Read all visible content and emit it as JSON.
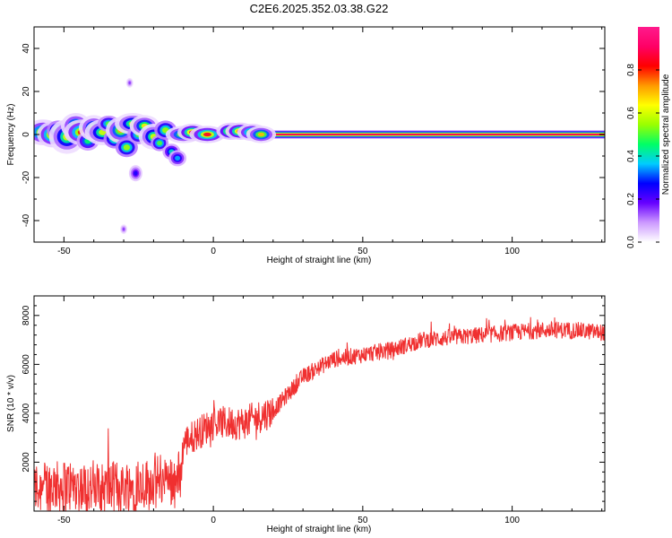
{
  "title": "C2E6.2025.352.03.38.G22",
  "chart_data": [
    {
      "type": "heatmap",
      "title": "C2E6.2025.352.03.38.G22",
      "xlabel": "Height of straight line (km)",
      "ylabel": "Frequency (Hz)",
      "xlim": [
        -60,
        131
      ],
      "ylim": [
        -50,
        50
      ],
      "xticks": [
        -50,
        0,
        50,
        100
      ],
      "yticks": [
        -40,
        -20,
        0,
        20,
        40
      ],
      "colorbar": {
        "label": "Normalized spectral amplitude",
        "range": [
          0,
          1
        ],
        "ticks": [
          "0.0",
          "0.2",
          "0.4",
          "0.6",
          "0.8"
        ],
        "colors": [
          "#ffffff",
          "#cc99ff",
          "#6600ff",
          "#0000ff",
          "#00ccff",
          "#00ff66",
          "#99ff00",
          "#ffff00",
          "#ff9900",
          "#ff0000",
          "#ff0066",
          "#ff1a8c"
        ]
      },
      "blobs": [
        {
          "x": -57,
          "y": 1,
          "w": 3,
          "h": 3,
          "a": 0.75
        },
        {
          "x": -54,
          "y": 0,
          "w": 2.5,
          "h": 3,
          "a": 0.8
        },
        {
          "x": -52,
          "y": 2,
          "w": 2.5,
          "h": 3,
          "a": 0.55
        },
        {
          "x": -49,
          "y": -1,
          "w": 3,
          "h": 4,
          "a": 0.6
        },
        {
          "x": -46,
          "y": 4,
          "w": 2.5,
          "h": 3,
          "a": 0.7
        },
        {
          "x": -44,
          "y": 1,
          "w": 3,
          "h": 3,
          "a": 0.8
        },
        {
          "x": -42,
          "y": -3,
          "w": 2.5,
          "h": 3,
          "a": 0.45
        },
        {
          "x": -40,
          "y": 3,
          "w": 2.5,
          "h": 3,
          "a": 0.65
        },
        {
          "x": -37,
          "y": 1,
          "w": 3,
          "h": 3,
          "a": 0.6
        },
        {
          "x": -35,
          "y": 5,
          "w": 2.5,
          "h": 2.5,
          "a": 0.5
        },
        {
          "x": -33,
          "y": -2,
          "w": 2.5,
          "h": 3,
          "a": 0.55
        },
        {
          "x": -31,
          "y": 2,
          "w": 2.5,
          "h": 3,
          "a": 0.7
        },
        {
          "x": -29,
          "y": -6,
          "w": 2.5,
          "h": 3,
          "a": 0.55
        },
        {
          "x": -27,
          "y": 5,
          "w": 3,
          "h": 2.5,
          "a": 0.6
        },
        {
          "x": -25,
          "y": 0,
          "w": 2.5,
          "h": 3,
          "a": 0.5
        },
        {
          "x": -23,
          "y": 4,
          "w": 2.5,
          "h": 2.5,
          "a": 0.65
        },
        {
          "x": -20,
          "y": -1,
          "w": 2.5,
          "h": 3,
          "a": 0.6
        },
        {
          "x": -18,
          "y": -4,
          "w": 2,
          "h": 2.5,
          "a": 0.5
        },
        {
          "x": -16,
          "y": 2,
          "w": 2.5,
          "h": 3,
          "a": 0.55
        },
        {
          "x": -14,
          "y": -8,
          "w": 2,
          "h": 2.5,
          "a": 0.4
        },
        {
          "x": -12,
          "y": -11,
          "w": 2,
          "h": 2.5,
          "a": 0.35
        },
        {
          "x": -10,
          "y": 0,
          "w": 3,
          "h": 2,
          "a": 0.7
        },
        {
          "x": -7,
          "y": 1,
          "w": 2.5,
          "h": 2,
          "a": 0.9
        },
        {
          "x": -2,
          "y": 0,
          "w": 3,
          "h": 2,
          "a": 0.85
        },
        {
          "x": 6,
          "y": 1.5,
          "w": 2.5,
          "h": 2,
          "a": 0.95
        },
        {
          "x": 9,
          "y": 1.5,
          "w": 2.5,
          "h": 2,
          "a": 0.9
        },
        {
          "x": 13,
          "y": 1,
          "w": 2.5,
          "h": 2,
          "a": 0.8
        },
        {
          "x": 16,
          "y": 0,
          "w": 2.5,
          "h": 2,
          "a": 0.7
        },
        {
          "x": -28,
          "y": 24,
          "w": 0.8,
          "h": 1.5,
          "a": 0.15
        },
        {
          "x": -30,
          "y": -44,
          "w": 0.8,
          "h": 1.5,
          "a": 0.15
        },
        {
          "x": -26,
          "y": -18,
          "w": 1.5,
          "h": 2.5,
          "a": 0.25
        }
      ],
      "ridge": {
        "x_start": -10,
        "x_end": 131,
        "frequency": 0
      }
    },
    {
      "type": "line",
      "xlabel": "Height of straight line (km)",
      "ylabel": "SNR (10 * v/v)",
      "xlim": [
        -60,
        131
      ],
      "ylim": [
        0,
        8800
      ],
      "xticks": [
        -50,
        0,
        50,
        100
      ],
      "yticks": [
        2000,
        4000,
        6000,
        8000
      ],
      "series": [
        {
          "name": "SNR",
          "color": "#f03030",
          "trend_x": [
            -60,
            -50,
            -40,
            -30,
            -20,
            -11,
            -10,
            0,
            10,
            20,
            30,
            40,
            50,
            60,
            70,
            80,
            90,
            100,
            110,
            120,
            131
          ],
          "trend_y": [
            950,
            1050,
            900,
            1000,
            1200,
            1300,
            2800,
            3600,
            3600,
            4100,
            5500,
            6200,
            6400,
            6600,
            7000,
            7100,
            7200,
            7300,
            7400,
            7400,
            7300
          ]
        }
      ]
    }
  ]
}
